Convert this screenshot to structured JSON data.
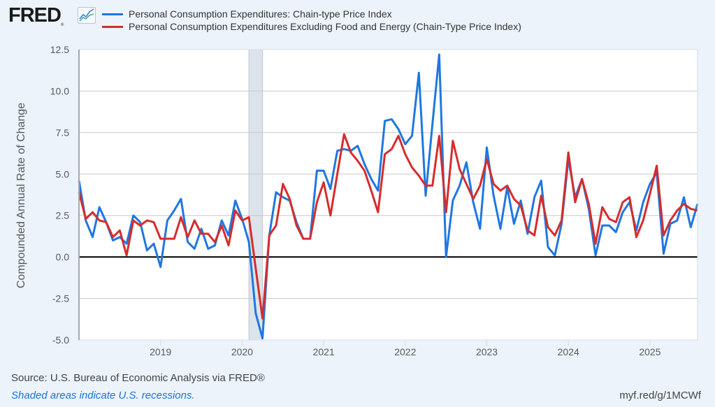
{
  "header": {
    "logo_text": "FRED",
    "logo_reg": "®",
    "logo_icon": "line-chart-icon"
  },
  "footer": {
    "source": "Source: U.S. Bureau of Economic Analysis via FRED®",
    "recession_note": "Shaded areas indicate U.S. recessions.",
    "shortlink": "myf.red/g/1MCWf"
  },
  "colors": {
    "series1": "#1f77e0",
    "series2": "#d62c2c",
    "recession": "#dde3ea",
    "grid": "#c8c8c8",
    "zero_line": "#000000",
    "background": "#ecf3fb"
  },
  "chart_data": {
    "type": "line",
    "title": "",
    "xlabel": "",
    "ylabel": "Compounded Annual Rate of Change",
    "ylim": [
      -5.0,
      12.5
    ],
    "yticks": [
      "12.5",
      "10.0",
      "7.5",
      "5.0",
      "2.5",
      "0.0",
      "-2.5",
      "-5.0"
    ],
    "ytick_values": [
      12.5,
      10.0,
      7.5,
      5.0,
      2.5,
      0.0,
      -2.5,
      -5.0
    ],
    "xticks": [
      "2019",
      "2020",
      "2021",
      "2022",
      "2023",
      "2024",
      "2025"
    ],
    "x_start": "2018-01",
    "x_end": "2025-08",
    "frequency": "monthly",
    "grid": true,
    "legend_position": "top",
    "recessions": [
      {
        "start": "2020-02",
        "end": "2020-04"
      }
    ],
    "series": [
      {
        "name": "Personal Consumption Expenditures: Chain-type Price Index",
        "color": "#1f77e0",
        "values": [
          4.6,
          2.2,
          1.2,
          3.0,
          2.1,
          1.0,
          1.2,
          0.8,
          2.5,
          2.1,
          0.4,
          0.8,
          -0.6,
          2.2,
          2.8,
          3.5,
          0.9,
          0.5,
          1.7,
          0.5,
          0.7,
          2.2,
          1.3,
          3.4,
          2.3,
          0.9,
          -3.4,
          -4.9,
          1.3,
          3.9,
          3.6,
          3.4,
          2.1,
          1.1,
          1.1,
          5.2,
          5.2,
          4.1,
          6.4,
          6.5,
          6.4,
          6.7,
          5.6,
          4.7,
          4.0,
          8.2,
          8.3,
          7.7,
          6.8,
          7.3,
          11.1,
          3.7,
          8.0,
          12.2,
          0.0,
          3.4,
          4.3,
          5.7,
          3.3,
          1.7,
          6.6,
          3.7,
          1.7,
          4.2,
          2.0,
          3.4,
          1.4,
          3.6,
          4.6,
          0.6,
          0.1,
          2.0,
          5.9,
          3.6,
          4.7,
          2.9,
          0.1,
          1.9,
          1.9,
          1.5,
          2.7,
          3.3,
          1.6,
          3.3,
          4.4,
          5.1,
          0.2,
          2.0,
          2.2,
          3.6,
          1.8,
          3.2
        ]
      },
      {
        "name": "Personal Consumption Expenditures Excluding Food and Energy (Chain-Type Price Index)",
        "color": "#d62c2c",
        "values": [
          3.9,
          2.3,
          2.7,
          2.2,
          2.1,
          1.2,
          1.6,
          0.1,
          2.2,
          1.9,
          2.2,
          2.1,
          1.1,
          1.1,
          1.1,
          2.4,
          1.2,
          2.2,
          1.4,
          1.4,
          0.9,
          1.9,
          0.7,
          2.8,
          2.2,
          2.4,
          -0.7,
          -3.7,
          1.3,
          1.9,
          4.4,
          3.5,
          1.9,
          1.1,
          1.1,
          3.3,
          4.5,
          2.5,
          5.0,
          7.4,
          6.3,
          5.8,
          5.2,
          4.0,
          2.7,
          6.2,
          6.5,
          7.3,
          6.2,
          5.4,
          4.9,
          4.3,
          4.3,
          7.3,
          2.7,
          7.0,
          5.3,
          4.4,
          3.5,
          4.3,
          5.9,
          4.4,
          4.0,
          4.3,
          3.5,
          3.1,
          1.6,
          1.3,
          3.7,
          1.8,
          1.3,
          2.2,
          6.3,
          3.3,
          4.7,
          3.2,
          0.8,
          3.0,
          2.3,
          2.1,
          3.3,
          3.6,
          1.2,
          2.2,
          3.8,
          5.5,
          1.3,
          2.2,
          2.8,
          3.2,
          2.9,
          2.8
        ]
      }
    ]
  }
}
